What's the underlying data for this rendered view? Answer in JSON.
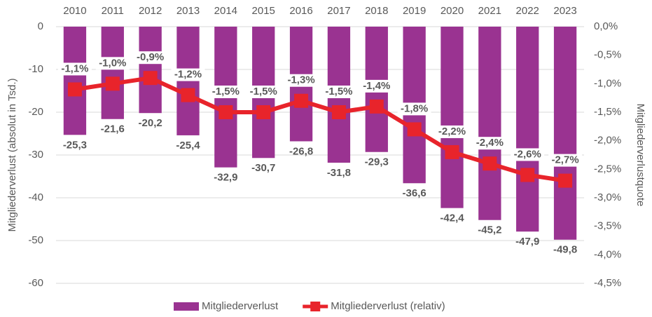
{
  "chart_data": {
    "type": "bar",
    "categories": [
      "2010",
      "2011",
      "2012",
      "2013",
      "2014",
      "2015",
      "2016",
      "2017",
      "2018",
      "2019",
      "2020",
      "2021",
      "2022",
      "2023"
    ],
    "series": [
      {
        "name": "Mitgliederverlust",
        "type": "bar",
        "color": "#9a3391",
        "values": [
          -25.3,
          -21.6,
          -20.2,
          -25.4,
          -32.9,
          -30.7,
          -26.8,
          -31.8,
          -29.3,
          -36.6,
          -42.4,
          -45.2,
          -47.9,
          -49.8
        ],
        "value_labels": [
          "-25,3",
          "-21,6",
          "-20,2",
          "-25,4",
          "-32,9",
          "-30,7",
          "-26,8",
          "-31,8",
          "-29,3",
          "-36,6",
          "-42,4",
          "-45,2",
          "-47,9",
          "-49,8"
        ]
      },
      {
        "name": "Mitgliederverlust (relativ)",
        "type": "line",
        "axis": "y2",
        "color": "#e8242b",
        "values": [
          -1.1,
          -1.0,
          -0.9,
          -1.2,
          -1.5,
          -1.5,
          -1.3,
          -1.5,
          -1.4,
          -1.8,
          -2.2,
          -2.4,
          -2.6,
          -2.7
        ],
        "value_labels": [
          "-1,1%",
          "-1,0%",
          "-0,9%",
          "-1,2%",
          "-1,5%",
          "-1,5%",
          "-1,3%",
          "-1,5%",
          "-1,4%",
          "-1,8%",
          "-2,2%",
          "-2,4%",
          "-2,6%",
          "-2,7%"
        ]
      }
    ],
    "y_label": "Mitgliederverlust (absolut in Tsd.)",
    "y2_label": "Mitgliederverlustquote",
    "ylim": [
      0,
      -60
    ],
    "yticks": [
      0,
      -10,
      -20,
      -30,
      -40,
      -50,
      -60
    ],
    "y2lim": [
      0,
      -4.5
    ],
    "y2ticks": [
      {
        "value": 0,
        "label": "0,0%"
      },
      {
        "value": -0.5,
        "label": "-0,5%"
      },
      {
        "value": -1,
        "label": "-1,0%"
      },
      {
        "value": -1.5,
        "label": "-1,5%"
      },
      {
        "value": -2,
        "label": "-2,0%"
      },
      {
        "value": -2.5,
        "label": "-2,5%"
      },
      {
        "value": -3,
        "label": "-3,0%"
      },
      {
        "value": -3.5,
        "label": "-3,5%"
      },
      {
        "value": -4,
        "label": "-4,0%"
      },
      {
        "value": -4.5,
        "label": "-4,5%"
      }
    ],
    "grid": true,
    "legend": "bottom"
  }
}
